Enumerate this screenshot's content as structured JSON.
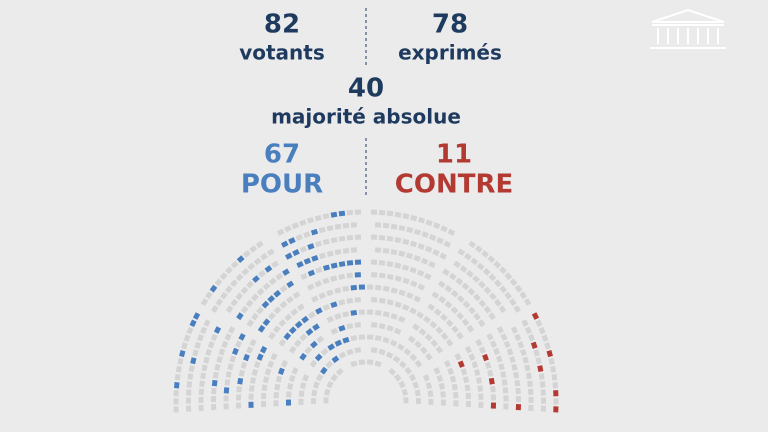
{
  "votants": {
    "value": 82,
    "label": "votants"
  },
  "exprimes": {
    "value": 78,
    "label": "exprimés"
  },
  "majorite": {
    "value": 40,
    "label": "majorité absolue"
  },
  "pour": {
    "value": 67,
    "label": "POUR"
  },
  "contre": {
    "value": 11,
    "label": "CONTRE"
  }
}
